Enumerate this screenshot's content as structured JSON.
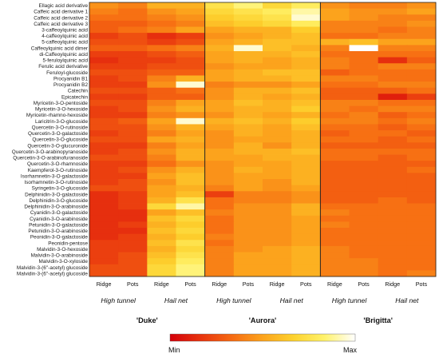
{
  "chart_data": {
    "type": "heatmap",
    "rows": [
      "Ellagic acid derivative",
      "Caffeic acid derivative 1",
      "Caffeic acid derivative 2",
      "Caffeic acid derivative 3",
      "3-caffeoylquinic acid",
      "4-caffeoylquinic acid",
      "5-caffeoylquinic acid",
      "Caffeoylquinic acid dimer",
      "di-Caffeoylquinic acid",
      "5-feruloylquinic acid",
      "Ferulic acid derivative",
      "Feruloyl-glucoside",
      "Procyanidin B1",
      "Procyanidin B2",
      "Catechin",
      "Epicatechin",
      "Myricetin-3-O-pentoside",
      "Myricetin-3-O-hexoside",
      "Myricetin-rhamno-hexoside",
      "Laricitrin-3-O-glucoside",
      "Quercetin-3-O-rutinoside",
      "Quercetin-3-O-galactoside",
      "Quercetin-3-O-glucoside",
      "Quercetin-3-O-glucuronide",
      "Quercetin-3-O-arabinopyranoside",
      "Quercetin-3-O-arabinofuranoside",
      "Quercetin-3-O-rhamnoside",
      "Kaempferol-3-O-rutinoside",
      "Isorhamnetin-3-O-galactoside",
      "Isorhamnetin-3-O-rutinoside",
      "Syringetin-3-O-glucoside",
      "Delphinidin-3-O-galactoside",
      "Delphinidin-3-O-glucoside",
      "Delphinidin-3-O-arabinoside",
      "Cyanidin-3-O-galactoside",
      "Cyanidin-3-O-arabinoside",
      "Petunidin-3-O-galactoside",
      "Petunidin-3-O-arabinoside",
      "Peonidin-3-O-galactoside",
      "Peonidin-pentose",
      "Malvidin-3-O-hexoside",
      "Malvidin-3-O-arabinoside",
      "Malvidin-3-O-xyloside",
      "Malvidin-3-(6''-acetyl) glucoside",
      "Malvidin-3-(6''-acetyl) glucoside"
    ],
    "columns": [
      "Ridge",
      "Pots",
      "Ridge",
      "Pots",
      "Ridge",
      "Pots",
      "Ridge",
      "Pots",
      "Ridge",
      "Pots",
      "Ridge",
      "Pots"
    ],
    "treatments": [
      "High tunnel",
      "Hail net",
      "High tunnel",
      "Hail net",
      "High tunnel",
      "Hail net"
    ],
    "cultivars": [
      "'Duke'",
      "'Aurora'",
      "'Brigitta'"
    ],
    "legend": {
      "min_label": "Min",
      "max_label": "Max"
    },
    "color_scale": [
      "#d4000a",
      "#e8340e",
      "#f66a12",
      "#fca31c",
      "#fdd22e",
      "#fff26a",
      "#ffffff"
    ],
    "values": [
      [
        0.45,
        0.4,
        0.55,
        0.55,
        0.75,
        0.85,
        0.7,
        0.8,
        0.45,
        0.4,
        0.4,
        0.45
      ],
      [
        0.4,
        0.35,
        0.45,
        0.5,
        0.7,
        0.75,
        0.8,
        0.9,
        0.5,
        0.45,
        0.45,
        0.5
      ],
      [
        0.35,
        0.35,
        0.4,
        0.45,
        0.65,
        0.7,
        0.75,
        0.95,
        0.5,
        0.45,
        0.4,
        0.4
      ],
      [
        0.3,
        0.3,
        0.35,
        0.4,
        0.6,
        0.65,
        0.7,
        0.8,
        0.4,
        0.4,
        0.4,
        0.45
      ],
      [
        0.3,
        0.35,
        0.4,
        0.5,
        0.5,
        0.55,
        0.55,
        0.65,
        0.4,
        0.4,
        0.35,
        0.4
      ],
      [
        0.2,
        0.25,
        0.15,
        0.2,
        0.45,
        0.5,
        0.55,
        0.6,
        0.35,
        0.35,
        0.4,
        0.4
      ],
      [
        0.25,
        0.25,
        0.2,
        0.25,
        0.5,
        0.55,
        0.6,
        0.6,
        0.55,
        0.6,
        0.5,
        0.5
      ],
      [
        0.3,
        0.3,
        0.35,
        0.4,
        0.55,
        0.95,
        0.6,
        0.55,
        0.4,
        1.0,
        0.4,
        0.4
      ],
      [
        0.2,
        0.2,
        0.25,
        0.3,
        0.5,
        0.55,
        0.55,
        0.6,
        0.35,
        0.35,
        0.35,
        0.35
      ],
      [
        0.15,
        0.2,
        0.2,
        0.25,
        0.5,
        0.55,
        0.5,
        0.55,
        0.4,
        0.35,
        0.15,
        0.3
      ],
      [
        0.2,
        0.2,
        0.25,
        0.25,
        0.45,
        0.5,
        0.5,
        0.55,
        0.4,
        0.35,
        0.4,
        0.4
      ],
      [
        0.25,
        0.25,
        0.3,
        0.3,
        0.5,
        0.55,
        0.6,
        0.6,
        0.3,
        0.35,
        0.35,
        0.35
      ],
      [
        0.2,
        0.25,
        0.4,
        0.55,
        0.5,
        0.55,
        0.55,
        0.6,
        0.4,
        0.4,
        0.35,
        0.35
      ],
      [
        0.2,
        0.2,
        0.45,
        0.95,
        0.4,
        0.45,
        0.45,
        0.5,
        0.35,
        0.35,
        0.4,
        0.4
      ],
      [
        0.25,
        0.25,
        0.3,
        0.35,
        0.45,
        0.55,
        0.55,
        0.6,
        0.3,
        0.3,
        0.3,
        0.35
      ],
      [
        0.2,
        0.2,
        0.3,
        0.3,
        0.45,
        0.55,
        0.5,
        0.55,
        0.3,
        0.3,
        0.1,
        0.2
      ],
      [
        0.25,
        0.25,
        0.4,
        0.5,
        0.5,
        0.6,
        0.55,
        0.6,
        0.4,
        0.4,
        0.35,
        0.35
      ],
      [
        0.2,
        0.25,
        0.45,
        0.55,
        0.5,
        0.55,
        0.55,
        0.65,
        0.4,
        0.35,
        0.4,
        0.4
      ],
      [
        0.2,
        0.2,
        0.4,
        0.45,
        0.45,
        0.55,
        0.5,
        0.55,
        0.35,
        0.4,
        0.3,
        0.35
      ],
      [
        0.25,
        0.3,
        0.5,
        0.95,
        0.55,
        0.6,
        0.55,
        0.65,
        0.4,
        0.4,
        0.35,
        0.4
      ],
      [
        0.25,
        0.25,
        0.45,
        0.55,
        0.5,
        0.55,
        0.5,
        0.6,
        0.35,
        0.35,
        0.3,
        0.35
      ],
      [
        0.2,
        0.25,
        0.4,
        0.5,
        0.45,
        0.55,
        0.5,
        0.55,
        0.3,
        0.35,
        0.35,
        0.3
      ],
      [
        0.25,
        0.25,
        0.5,
        0.55,
        0.45,
        0.5,
        0.5,
        0.55,
        0.35,
        0.35,
        0.3,
        0.35
      ],
      [
        0.2,
        0.2,
        0.4,
        0.5,
        0.45,
        0.55,
        0.45,
        0.55,
        0.3,
        0.3,
        0.3,
        0.3
      ],
      [
        0.2,
        0.25,
        0.45,
        0.55,
        0.5,
        0.55,
        0.55,
        0.6,
        0.35,
        0.35,
        0.35,
        0.35
      ],
      [
        0.25,
        0.25,
        0.4,
        0.55,
        0.5,
        0.5,
        0.55,
        0.55,
        0.35,
        0.35,
        0.3,
        0.35
      ],
      [
        0.2,
        0.2,
        0.35,
        0.45,
        0.45,
        0.5,
        0.5,
        0.55,
        0.3,
        0.3,
        0.3,
        0.3
      ],
      [
        0.2,
        0.25,
        0.45,
        0.55,
        0.45,
        0.55,
        0.5,
        0.55,
        0.3,
        0.3,
        0.3,
        0.35
      ],
      [
        0.2,
        0.2,
        0.5,
        0.6,
        0.45,
        0.5,
        0.5,
        0.55,
        0.3,
        0.3,
        0.3,
        0.3
      ],
      [
        0.2,
        0.25,
        0.45,
        0.6,
        0.45,
        0.5,
        0.45,
        0.55,
        0.3,
        0.3,
        0.3,
        0.3
      ],
      [
        0.25,
        0.25,
        0.5,
        0.55,
        0.4,
        0.5,
        0.45,
        0.5,
        0.3,
        0.3,
        0.3,
        0.3
      ],
      [
        0.15,
        0.2,
        0.5,
        0.6,
        0.2,
        0.4,
        0.4,
        0.45,
        0.3,
        0.3,
        0.3,
        0.3
      ],
      [
        0.15,
        0.2,
        0.55,
        0.75,
        0.35,
        0.4,
        0.4,
        0.45,
        0.3,
        0.3,
        0.35,
        0.3
      ],
      [
        0.15,
        0.2,
        0.7,
        0.9,
        0.35,
        0.45,
        0.45,
        0.55,
        0.35,
        0.35,
        0.35,
        0.35
      ],
      [
        0.15,
        0.15,
        0.5,
        0.6,
        0.4,
        0.45,
        0.45,
        0.55,
        0.4,
        0.35,
        0.35,
        0.35
      ],
      [
        0.15,
        0.15,
        0.6,
        0.7,
        0.35,
        0.45,
        0.45,
        0.5,
        0.35,
        0.35,
        0.35,
        0.35
      ],
      [
        0.15,
        0.2,
        0.55,
        0.65,
        0.35,
        0.45,
        0.45,
        0.5,
        0.4,
        0.35,
        0.35,
        0.35
      ],
      [
        0.15,
        0.15,
        0.6,
        0.7,
        0.35,
        0.45,
        0.45,
        0.5,
        0.35,
        0.35,
        0.35,
        0.35
      ],
      [
        0.15,
        0.2,
        0.55,
        0.65,
        0.4,
        0.45,
        0.45,
        0.5,
        0.35,
        0.35,
        0.35,
        0.35
      ],
      [
        0.2,
        0.2,
        0.6,
        0.75,
        0.35,
        0.45,
        0.45,
        0.5,
        0.35,
        0.35,
        0.35,
        0.35
      ],
      [
        0.2,
        0.2,
        0.55,
        0.7,
        0.4,
        0.45,
        0.5,
        0.55,
        0.4,
        0.35,
        0.35,
        0.35
      ],
      [
        0.2,
        0.25,
        0.6,
        0.75,
        0.4,
        0.5,
        0.5,
        0.55,
        0.4,
        0.35,
        0.35,
        0.35
      ],
      [
        0.2,
        0.25,
        0.65,
        0.8,
        0.4,
        0.5,
        0.5,
        0.55,
        0.4,
        0.4,
        0.35,
        0.35
      ],
      [
        0.25,
        0.25,
        0.7,
        0.85,
        0.4,
        0.5,
        0.5,
        0.55,
        0.4,
        0.4,
        0.35,
        0.35
      ],
      [
        0.25,
        0.25,
        0.7,
        0.85,
        0.4,
        0.5,
        0.5,
        0.55,
        0.4,
        0.4,
        0.35,
        0.4
      ]
    ]
  }
}
